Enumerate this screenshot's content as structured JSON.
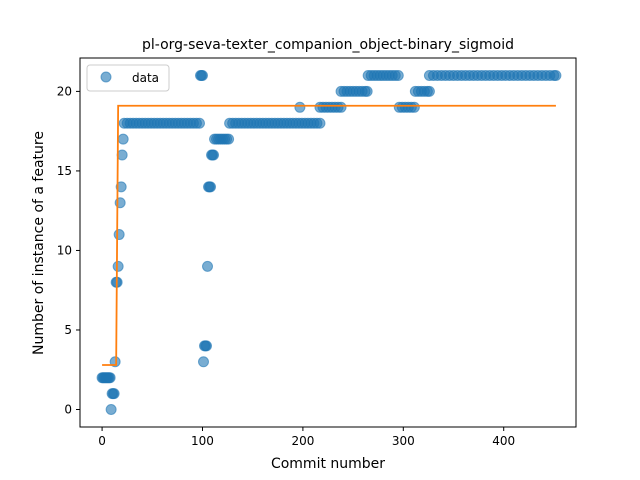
{
  "chart_data": {
    "type": "scatter",
    "title": "pl-org-seva-texter_companion_object-binary_sigmoid",
    "xlabel": "Commit number",
    "ylabel": "Number of instance of a feature",
    "xlim": [
      -22,
      472
    ],
    "ylim": [
      -1.1,
      22.1
    ],
    "xticks": [
      0,
      100,
      200,
      300,
      400
    ],
    "yticks": [
      0,
      5,
      10,
      15,
      20
    ],
    "legend": {
      "position": "top-left",
      "label": "data"
    },
    "colors": {
      "points": "#1f77b4",
      "fit": "#ff7f0e"
    },
    "series": [
      {
        "name": "data",
        "kind": "points",
        "points": [
          [
            0,
            2
          ],
          [
            1,
            2
          ],
          [
            2,
            2
          ],
          [
            3,
            2
          ],
          [
            4,
            2
          ],
          [
            5,
            2
          ],
          [
            6,
            2
          ],
          [
            7,
            2
          ],
          [
            8,
            2
          ],
          [
            9,
            0
          ],
          [
            10,
            1
          ],
          [
            11,
            1
          ],
          [
            12,
            1
          ],
          [
            13,
            3
          ],
          [
            14,
            8
          ],
          [
            15,
            8
          ],
          [
            16,
            9
          ],
          [
            17,
            11
          ],
          [
            18,
            13
          ],
          [
            19,
            14
          ],
          [
            20,
            16
          ],
          [
            21,
            17
          ],
          [
            22,
            18
          ],
          [
            25,
            18
          ],
          [
            28,
            18
          ],
          [
            31,
            18
          ],
          [
            34,
            18
          ],
          [
            37,
            18
          ],
          [
            40,
            18
          ],
          [
            43,
            18
          ],
          [
            46,
            18
          ],
          [
            49,
            18
          ],
          [
            52,
            18
          ],
          [
            55,
            18
          ],
          [
            58,
            18
          ],
          [
            61,
            18
          ],
          [
            64,
            18
          ],
          [
            67,
            18
          ],
          [
            70,
            18
          ],
          [
            73,
            18
          ],
          [
            76,
            18
          ],
          [
            79,
            18
          ],
          [
            82,
            18
          ],
          [
            85,
            18
          ],
          [
            88,
            18
          ],
          [
            91,
            18
          ],
          [
            94,
            18
          ],
          [
            97,
            18
          ],
          [
            98,
            21
          ],
          [
            99,
            21
          ],
          [
            100,
            21
          ],
          [
            101,
            3
          ],
          [
            102,
            4
          ],
          [
            103,
            4
          ],
          [
            104,
            4
          ],
          [
            105,
            9
          ],
          [
            106,
            14
          ],
          [
            107,
            14
          ],
          [
            108,
            14
          ],
          [
            109,
            16
          ],
          [
            110,
            16
          ],
          [
            111,
            16
          ],
          [
            112,
            17
          ],
          [
            114,
            17
          ],
          [
            116,
            17
          ],
          [
            118,
            17
          ],
          [
            120,
            17
          ],
          [
            122,
            17
          ],
          [
            124,
            17
          ],
          [
            126,
            17
          ],
          [
            127,
            18
          ],
          [
            130,
            18
          ],
          [
            133,
            18
          ],
          [
            136,
            18
          ],
          [
            139,
            18
          ],
          [
            142,
            18
          ],
          [
            145,
            18
          ],
          [
            148,
            18
          ],
          [
            151,
            18
          ],
          [
            154,
            18
          ],
          [
            157,
            18
          ],
          [
            160,
            18
          ],
          [
            163,
            18
          ],
          [
            166,
            18
          ],
          [
            169,
            18
          ],
          [
            172,
            18
          ],
          [
            175,
            18
          ],
          [
            178,
            18
          ],
          [
            181,
            18
          ],
          [
            184,
            18
          ],
          [
            187,
            18
          ],
          [
            190,
            18
          ],
          [
            193,
            18
          ],
          [
            196,
            18
          ],
          [
            197,
            19
          ],
          [
            199,
            18
          ],
          [
            202,
            18
          ],
          [
            205,
            18
          ],
          [
            208,
            18
          ],
          [
            211,
            18
          ],
          [
            214,
            18
          ],
          [
            217,
            18
          ],
          [
            217,
            19
          ],
          [
            220,
            19
          ],
          [
            223,
            19
          ],
          [
            226,
            19
          ],
          [
            229,
            19
          ],
          [
            232,
            19
          ],
          [
            235,
            19
          ],
          [
            238,
            19
          ],
          [
            238,
            20
          ],
          [
            241,
            20
          ],
          [
            244,
            20
          ],
          [
            247,
            20
          ],
          [
            250,
            20
          ],
          [
            253,
            20
          ],
          [
            256,
            20
          ],
          [
            259,
            20
          ],
          [
            262,
            20
          ],
          [
            264,
            20
          ],
          [
            265,
            21
          ],
          [
            268,
            21
          ],
          [
            271,
            21
          ],
          [
            274,
            21
          ],
          [
            277,
            21
          ],
          [
            280,
            21
          ],
          [
            283,
            21
          ],
          [
            286,
            21
          ],
          [
            289,
            21
          ],
          [
            292,
            21
          ],
          [
            295,
            21
          ],
          [
            296,
            19
          ],
          [
            299,
            19
          ],
          [
            302,
            19
          ],
          [
            305,
            19
          ],
          [
            308,
            19
          ],
          [
            311,
            19
          ],
          [
            312,
            20
          ],
          [
            315,
            20
          ],
          [
            318,
            20
          ],
          [
            321,
            20
          ],
          [
            324,
            20
          ],
          [
            326,
            20
          ],
          [
            326,
            21
          ],
          [
            330,
            21
          ],
          [
            334,
            21
          ],
          [
            338,
            21
          ],
          [
            342,
            21
          ],
          [
            346,
            21
          ],
          [
            350,
            21
          ],
          [
            354,
            21
          ],
          [
            358,
            21
          ],
          [
            362,
            21
          ],
          [
            366,
            21
          ],
          [
            370,
            21
          ],
          [
            374,
            21
          ],
          [
            378,
            21
          ],
          [
            382,
            21
          ],
          [
            386,
            21
          ],
          [
            390,
            21
          ],
          [
            394,
            21
          ],
          [
            398,
            21
          ],
          [
            402,
            21
          ],
          [
            406,
            21
          ],
          [
            410,
            21
          ],
          [
            414,
            21
          ],
          [
            418,
            21
          ],
          [
            422,
            21
          ],
          [
            426,
            21
          ],
          [
            430,
            21
          ],
          [
            434,
            21
          ],
          [
            438,
            21
          ],
          [
            442,
            21
          ],
          [
            446,
            21
          ],
          [
            450,
            21
          ],
          [
            452,
            21
          ]
        ]
      },
      {
        "name": "",
        "kind": "line",
        "points": [
          [
            0,
            2.8
          ],
          [
            14,
            2.8
          ],
          [
            16,
            19.1
          ],
          [
            452,
            19.1
          ]
        ]
      }
    ]
  }
}
